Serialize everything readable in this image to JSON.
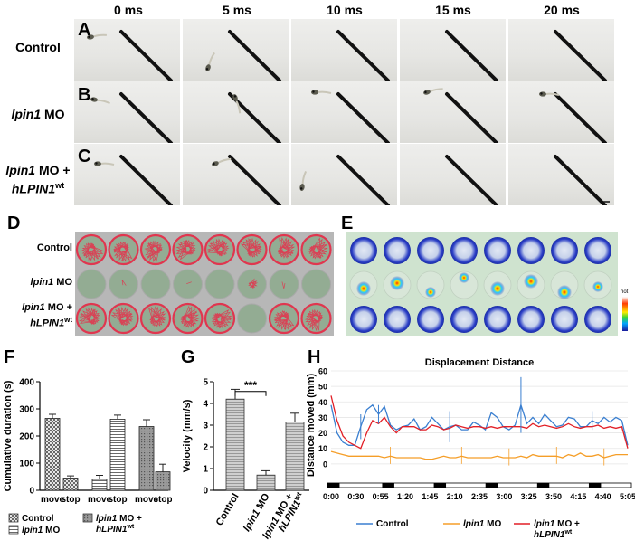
{
  "panel_letters": {
    "A": "A",
    "B": "B",
    "C": "C",
    "D": "D",
    "E": "E",
    "F": "F",
    "G": "G",
    "H": "H"
  },
  "timepoints": [
    "0 ms",
    "5 ms",
    "10 ms",
    "15 ms",
    "20 ms"
  ],
  "rows": {
    "control": "Control",
    "lpin1_mo": {
      "gene": "lpin1",
      "suffix": " MO"
    },
    "rescue": {
      "line1_gene": "lpin1",
      "line1_suffix": " MO +",
      "line2_gene": "hLPIN1",
      "line2_sup": "wt"
    }
  },
  "heatmap_scale_label": "hot",
  "chart_data": [
    {
      "panel": "F",
      "type": "bar",
      "ylabel": "Cumulative duration (s)",
      "ylim": [
        0,
        400
      ],
      "yticks": [
        0,
        100,
        200,
        300,
        400
      ],
      "categories": [
        "move",
        "stop",
        "move",
        "stop",
        "move",
        "stop"
      ],
      "groups": [
        "Control",
        "lpin1 MO",
        "lpin1 MO + hLPIN1wt"
      ],
      "values": [
        265,
        45,
        40,
        262,
        235,
        68
      ],
      "errors": [
        15,
        8,
        15,
        15,
        25,
        28
      ],
      "legend": [
        "Control",
        "lpin1 MO",
        "lpin1 MO + hLPIN1wt"
      ]
    },
    {
      "panel": "G",
      "type": "bar",
      "ylabel": "Velocity (mm/s)",
      "ylim": [
        0,
        5
      ],
      "yticks": [
        0,
        1,
        2,
        3,
        4,
        5
      ],
      "categories": [
        "Control",
        "lpin1 MO",
        "lpin1 MO + hLPIN1wt"
      ],
      "values": [
        4.2,
        0.7,
        3.15
      ],
      "errors": [
        0.45,
        0.2,
        0.4
      ],
      "significance": "***"
    },
    {
      "panel": "H",
      "type": "line",
      "title": "Displacement Distance",
      "ylabel": "Distance moved (mm)",
      "ylim": [
        -10,
        60
      ],
      "yticks": [
        0,
        10,
        20,
        30,
        40,
        50,
        60
      ],
      "x_ticklabels": [
        "0:00",
        "0:30",
        "0:55",
        "1:20",
        "1:45",
        "2:10",
        "2:35",
        "3:00",
        "3:25",
        "3:50",
        "4:15",
        "4:40",
        "5:05"
      ],
      "series": [
        {
          "name": "Control",
          "color": "#3a7fd0",
          "values": [
            38,
            20,
            14,
            12,
            12,
            24,
            35,
            38,
            32,
            37,
            25,
            22,
            24,
            25,
            29,
            22,
            24,
            30,
            26,
            22,
            24,
            25,
            22,
            22,
            27,
            25,
            22,
            33,
            30,
            24,
            22,
            25,
            38,
            26,
            30,
            26,
            32,
            28,
            24,
            25,
            30,
            29,
            24,
            24,
            28,
            26,
            30,
            27,
            30,
            28,
            12
          ]
        },
        {
          "name": "lpin1 MO",
          "color": "#f59e28",
          "values": [
            8,
            7,
            6,
            5,
            5,
            5,
            5,
            5,
            5,
            4,
            5,
            4,
            4,
            4,
            4,
            4,
            3,
            3,
            4,
            5,
            4,
            4,
            5,
            4,
            4,
            4,
            4,
            4,
            5,
            4,
            4,
            4,
            5,
            4,
            6,
            5,
            5,
            5,
            5,
            4,
            6,
            5,
            7,
            5,
            5,
            6,
            4,
            5,
            6,
            6,
            6
          ]
        },
        {
          "name": "lpin1 MO + hLPIN1wt",
          "color": "#e21f26",
          "values": [
            44,
            28,
            18,
            14,
            12,
            10,
            20,
            28,
            26,
            30,
            24,
            20,
            24,
            24,
            24,
            22,
            22,
            25,
            24,
            22,
            23,
            25,
            24,
            23,
            24,
            24,
            23,
            24,
            23,
            24,
            24,
            24,
            24,
            23,
            26,
            24,
            25,
            24,
            23,
            24,
            26,
            24,
            23,
            24,
            24,
            25,
            23,
            24,
            23,
            24,
            10
          ]
        }
      ],
      "legend": [
        "Control",
        "lpin1 MO",
        "lpin1 MO + hLPIN1wt"
      ]
    }
  ]
}
